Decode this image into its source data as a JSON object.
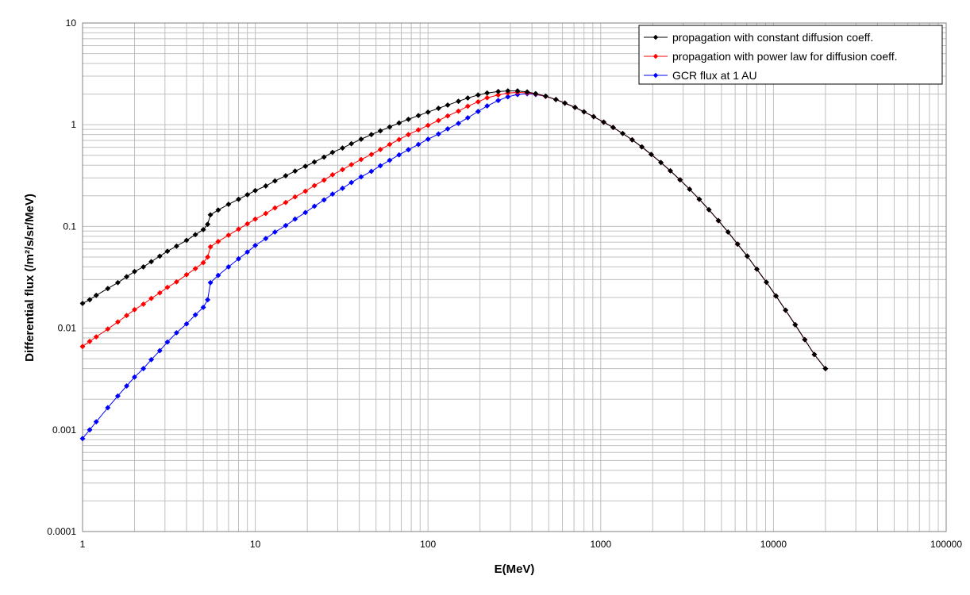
{
  "chart_data": {
    "type": "line",
    "title": "",
    "xlabel": "E(MeV)",
    "ylabel": "Differential flux (/m²/s/sr/MeV)",
    "xscale": "log",
    "yscale": "log",
    "xlim": [
      1,
      100000
    ],
    "ylim": [
      0.0001,
      10
    ],
    "grid": true,
    "legend_position": "top-right",
    "x_tick_labels": [
      "1",
      "10",
      "100",
      "1000",
      "10000",
      "100000"
    ],
    "y_tick_labels": [
      "0.0001",
      "0.001",
      "0.01",
      "0.1",
      "1",
      "10"
    ],
    "series": [
      {
        "name": "propagation with constant diffusion coeff.",
        "color": "#000000",
        "points": [
          [
            1.0,
            0.0175
          ],
          [
            1.1,
            0.019
          ],
          [
            1.2,
            0.021
          ],
          [
            1.4,
            0.0245
          ],
          [
            1.6,
            0.028
          ],
          [
            1.8,
            0.032
          ],
          [
            2.0,
            0.036
          ],
          [
            2.25,
            0.04
          ],
          [
            2.5,
            0.045
          ],
          [
            2.8,
            0.051
          ],
          [
            3.1,
            0.057
          ],
          [
            3.5,
            0.064
          ],
          [
            4.0,
            0.073
          ],
          [
            4.5,
            0.083
          ],
          [
            5.0,
            0.093
          ],
          [
            5.3,
            0.105
          ],
          [
            5.5,
            0.13
          ],
          [
            6.1,
            0.145
          ],
          [
            7.0,
            0.165
          ],
          [
            8.0,
            0.185
          ],
          [
            9.0,
            0.205
          ],
          [
            10,
            0.225
          ],
          [
            11.5,
            0.25
          ],
          [
            13,
            0.28
          ],
          [
            15,
            0.315
          ],
          [
            17,
            0.35
          ],
          [
            19.5,
            0.39
          ],
          [
            22,
            0.43
          ],
          [
            25,
            0.48
          ],
          [
            28,
            0.535
          ],
          [
            32,
            0.59
          ],
          [
            36,
            0.65
          ],
          [
            41,
            0.72
          ],
          [
            47,
            0.8
          ],
          [
            53,
            0.87
          ],
          [
            60,
            0.95
          ],
          [
            68,
            1.04
          ],
          [
            77,
            1.13
          ],
          [
            88,
            1.23
          ],
          [
            100,
            1.33
          ],
          [
            115,
            1.45
          ],
          [
            130,
            1.56
          ],
          [
            150,
            1.7
          ],
          [
            170,
            1.83
          ],
          [
            195,
            1.96
          ],
          [
            220,
            2.05
          ],
          [
            255,
            2.12
          ],
          [
            290,
            2.15
          ],
          [
            330,
            2.15
          ],
          [
            375,
            2.1
          ],
          [
            420,
            2.02
          ],
          [
            480,
            1.91
          ],
          [
            550,
            1.77
          ],
          [
            620,
            1.63
          ],
          [
            710,
            1.48
          ],
          [
            800,
            1.34
          ],
          [
            910,
            1.2
          ],
          [
            1040,
            1.06
          ],
          [
            1180,
            0.94
          ],
          [
            1340,
            0.82
          ],
          [
            1520,
            0.71
          ],
          [
            1730,
            0.605
          ],
          [
            1960,
            0.51
          ],
          [
            2230,
            0.425
          ],
          [
            2530,
            0.352
          ],
          [
            2880,
            0.287
          ],
          [
            3270,
            0.232
          ],
          [
            3720,
            0.185
          ],
          [
            4230,
            0.146
          ],
          [
            4800,
            0.114
          ],
          [
            5460,
            0.088
          ],
          [
            6200,
            0.067
          ],
          [
            7050,
            0.051
          ],
          [
            8010,
            0.038
          ],
          [
            9100,
            0.0283
          ],
          [
            10340,
            0.0207
          ],
          [
            11750,
            0.015
          ],
          [
            13360,
            0.0108
          ],
          [
            15180,
            0.0077
          ],
          [
            17250,
            0.0055
          ],
          [
            20000,
            0.004
          ]
        ]
      },
      {
        "name": "propagation with power law for diffusion coeff.",
        "color": "#ff0000",
        "points": [
          [
            1.0,
            0.0066
          ],
          [
            1.1,
            0.0074
          ],
          [
            1.2,
            0.0082
          ],
          [
            1.4,
            0.0098
          ],
          [
            1.6,
            0.0115
          ],
          [
            1.8,
            0.0133
          ],
          [
            2.0,
            0.0152
          ],
          [
            2.25,
            0.0172
          ],
          [
            2.5,
            0.0196
          ],
          [
            2.8,
            0.0222
          ],
          [
            3.1,
            0.0252
          ],
          [
            3.5,
            0.0285
          ],
          [
            4.0,
            0.0335
          ],
          [
            4.5,
            0.0385
          ],
          [
            5.0,
            0.044
          ],
          [
            5.3,
            0.05
          ],
          [
            5.5,
            0.063
          ],
          [
            6.1,
            0.071
          ],
          [
            7.0,
            0.082
          ],
          [
            8.0,
            0.094
          ],
          [
            9.0,
            0.106
          ],
          [
            10,
            0.118
          ],
          [
            11.5,
            0.134
          ],
          [
            13,
            0.152
          ],
          [
            15,
            0.172
          ],
          [
            17,
            0.195
          ],
          [
            19.5,
            0.222
          ],
          [
            22,
            0.252
          ],
          [
            25,
            0.285
          ],
          [
            28,
            0.322
          ],
          [
            32,
            0.362
          ],
          [
            36,
            0.405
          ],
          [
            41,
            0.455
          ],
          [
            47,
            0.51
          ],
          [
            53,
            0.57
          ],
          [
            60,
            0.64
          ],
          [
            68,
            0.715
          ],
          [
            77,
            0.8
          ],
          [
            88,
            0.89
          ],
          [
            100,
            0.985
          ],
          [
            115,
            1.1
          ],
          [
            130,
            1.22
          ],
          [
            150,
            1.36
          ],
          [
            170,
            1.52
          ],
          [
            195,
            1.68
          ],
          [
            220,
            1.84
          ],
          [
            255,
            1.96
          ],
          [
            290,
            2.05
          ],
          [
            330,
            2.08
          ],
          [
            375,
            2.06
          ],
          [
            420,
            2.0
          ],
          [
            480,
            1.9
          ],
          [
            550,
            1.77
          ],
          [
            620,
            1.63
          ],
          [
            710,
            1.48
          ],
          [
            800,
            1.34
          ],
          [
            910,
            1.2
          ],
          [
            1040,
            1.06
          ],
          [
            1180,
            0.94
          ],
          [
            1340,
            0.82
          ],
          [
            1520,
            0.71
          ],
          [
            1730,
            0.605
          ],
          [
            1960,
            0.51
          ],
          [
            2230,
            0.425
          ],
          [
            2530,
            0.352
          ],
          [
            2880,
            0.287
          ],
          [
            3270,
            0.232
          ],
          [
            3720,
            0.185
          ],
          [
            4230,
            0.146
          ],
          [
            4800,
            0.114
          ],
          [
            5460,
            0.088
          ],
          [
            6200,
            0.067
          ],
          [
            7050,
            0.051
          ],
          [
            8010,
            0.038
          ],
          [
            9100,
            0.0283
          ],
          [
            10340,
            0.0207
          ],
          [
            11750,
            0.015
          ],
          [
            13360,
            0.0108
          ],
          [
            15180,
            0.0077
          ],
          [
            17250,
            0.0055
          ],
          [
            20000,
            0.004
          ]
        ]
      },
      {
        "name": "GCR flux at 1 AU",
        "color": "#0000ff",
        "points": [
          [
            1.0,
            0.00082
          ],
          [
            1.1,
            0.001
          ],
          [
            1.2,
            0.0012
          ],
          [
            1.4,
            0.00165
          ],
          [
            1.6,
            0.00215
          ],
          [
            1.8,
            0.0027
          ],
          [
            2.0,
            0.0033
          ],
          [
            2.25,
            0.004
          ],
          [
            2.5,
            0.0049
          ],
          [
            2.8,
            0.006
          ],
          [
            3.1,
            0.0073
          ],
          [
            3.5,
            0.009
          ],
          [
            4.0,
            0.011
          ],
          [
            4.5,
            0.0135
          ],
          [
            5.0,
            0.016
          ],
          [
            5.3,
            0.019
          ],
          [
            5.5,
            0.028
          ],
          [
            6.1,
            0.033
          ],
          [
            7.0,
            0.04
          ],
          [
            8.0,
            0.048
          ],
          [
            9.0,
            0.056
          ],
          [
            10,
            0.065
          ],
          [
            11.5,
            0.076
          ],
          [
            13,
            0.088
          ],
          [
            15,
            0.102
          ],
          [
            17,
            0.118
          ],
          [
            19.5,
            0.137
          ],
          [
            22,
            0.158
          ],
          [
            25,
            0.182
          ],
          [
            28,
            0.208
          ],
          [
            32,
            0.237
          ],
          [
            36,
            0.27
          ],
          [
            41,
            0.307
          ],
          [
            47,
            0.348
          ],
          [
            53,
            0.395
          ],
          [
            60,
            0.447
          ],
          [
            68,
            0.505
          ],
          [
            77,
            0.568
          ],
          [
            88,
            0.64
          ],
          [
            100,
            0.72
          ],
          [
            115,
            0.81
          ],
          [
            130,
            0.91
          ],
          [
            150,
            1.03
          ],
          [
            170,
            1.17
          ],
          [
            195,
            1.35
          ],
          [
            220,
            1.53
          ],
          [
            255,
            1.73
          ],
          [
            290,
            1.88
          ],
          [
            330,
            1.98
          ],
          [
            375,
            2.02
          ],
          [
            420,
            1.98
          ],
          [
            480,
            1.9
          ],
          [
            550,
            1.77
          ],
          [
            620,
            1.63
          ],
          [
            710,
            1.48
          ],
          [
            800,
            1.34
          ],
          [
            910,
            1.2
          ],
          [
            1040,
            1.06
          ],
          [
            1180,
            0.94
          ],
          [
            1340,
            0.82
          ],
          [
            1520,
            0.71
          ],
          [
            1730,
            0.605
          ],
          [
            1960,
            0.51
          ],
          [
            2230,
            0.425
          ],
          [
            2530,
            0.352
          ],
          [
            2880,
            0.287
          ],
          [
            3270,
            0.232
          ],
          [
            3720,
            0.185
          ],
          [
            4230,
            0.146
          ],
          [
            4800,
            0.114
          ],
          [
            5460,
            0.088
          ],
          [
            6200,
            0.067
          ],
          [
            7050,
            0.051
          ],
          [
            8010,
            0.038
          ],
          [
            9100,
            0.0283
          ],
          [
            10340,
            0.0207
          ],
          [
            11750,
            0.015
          ],
          [
            13360,
            0.0108
          ],
          [
            15180,
            0.0077
          ],
          [
            17250,
            0.0055
          ],
          [
            20000,
            0.004
          ]
        ]
      }
    ]
  }
}
